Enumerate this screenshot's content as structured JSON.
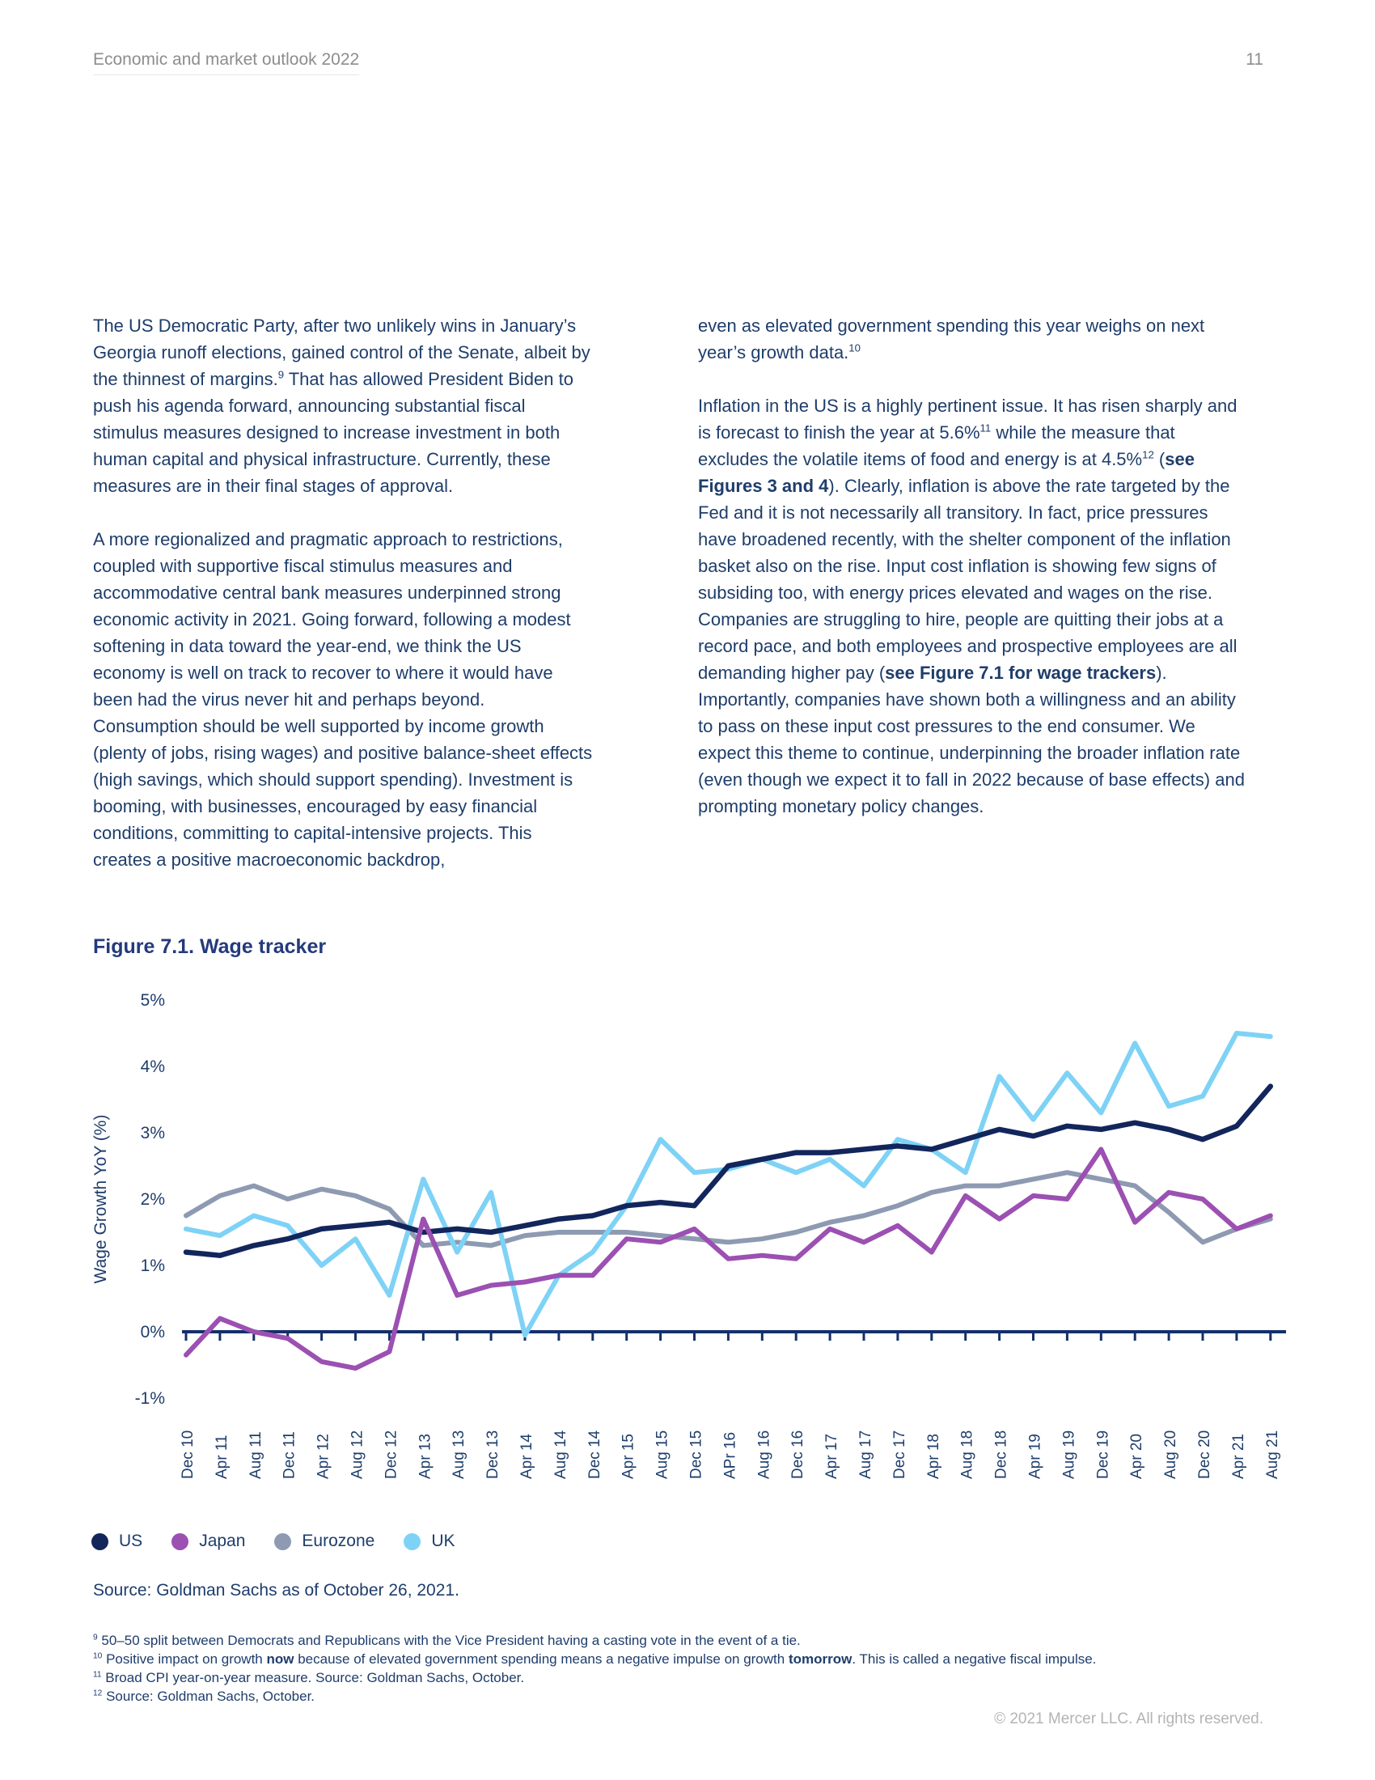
{
  "page": {
    "header_left": "Economic and market outlook 2022",
    "page_number": "11",
    "copyright": "© 2021 Mercer LLC. All rights reserved."
  },
  "colors": {
    "body_text": "#1e3d6b",
    "axis": "#14306a",
    "header_gray": "#8d8d8d",
    "copyright_gray": "#b3b3b3",
    "figure_title": "#233a7c",
    "us": "#12265c",
    "japan": "#9b50b2",
    "eurozone": "#8d9ab1",
    "uk": "#7ed2f6"
  },
  "body": {
    "left_column": [
      [
        {
          "t": "The US Democratic Party, after two unlikely wins in January’s Georgia runoff elections, gained control of the Senate, albeit by the thinnest of margins."
        },
        {
          "t": "9",
          "sup": true
        },
        {
          "t": " That has allowed President Biden to push his agenda forward, announcing substantial fiscal stimulus measures designed to increase investment in both human capital and physical infrastructure. Currently, these measures are in their final stages of approval."
        }
      ],
      [
        {
          "t": "A more regionalized and pragmatic approach to restrictions, coupled with supportive fiscal stimulus measures and accommodative central bank measures underpinned strong economic activity in 2021. Going forward, following a modest softening in data toward the year-end, we think the US economy is well on track to recover to where it would have been had the virus never hit and perhaps beyond. Consumption should be well supported by income growth (plenty of jobs, rising wages) and positive balance-sheet effects (high savings, which should support spending). Investment is booming, with businesses, encouraged by easy financial conditions, committing to capital-intensive projects. This creates a positive macroeconomic backdrop,"
        }
      ]
    ],
    "right_column": [
      [
        {
          "t": "even as elevated government spending this year weighs on next year’s growth data."
        },
        {
          "t": "10",
          "sup": true
        }
      ],
      [
        {
          "t": "Inflation in the US is a highly pertinent issue. It has risen sharply and is forecast to finish the year at 5.6%"
        },
        {
          "t": "11",
          "sup": true
        },
        {
          "t": " while the measure that excludes the volatile items of food and energy is at 4.5%"
        },
        {
          "t": "12",
          "sup": true
        },
        {
          "t": " ("
        },
        {
          "t": "see Figures 3 and 4",
          "b": true
        },
        {
          "t": "). Clearly, inflation is above the rate targeted by the Fed and it is not necessarily all transitory. In fact, price pressures have broadened recently, with the shelter component of the inflation basket also on the rise. Input cost inflation is showing few signs of subsiding too, with energy prices elevated and wages on the rise. Companies are struggling to hire, people are quitting their jobs at a record pace, and both employees and prospective employees are all demanding higher pay ("
        },
        {
          "t": "see Figure 7.1 for wage trackers",
          "b": true
        },
        {
          "t": "). Importantly, companies have shown both a willingness and an ability to pass on these input cost pressures to the end consumer. We expect this theme to continue, underpinning the broader inflation rate (even though we expect it to fall in 2022 because of base effects) and prompting monetary policy changes."
        }
      ]
    ]
  },
  "figure": {
    "title": "Figure 7.1. Wage tracker",
    "source": "Source: Goldman Sachs as of October 26, 2021."
  },
  "footnotes": [
    [
      {
        "t": "9",
        "sup": true
      },
      {
        "t": " 50–50 split between Democrats and Republicans with the Vice President having a casting vote in the event of a tie."
      }
    ],
    [
      {
        "t": "10",
        "sup": true
      },
      {
        "t": " Positive impact on growth "
      },
      {
        "t": "now",
        "b": true
      },
      {
        "t": " because of elevated government spending means a negative impulse on growth "
      },
      {
        "t": "tomorrow",
        "b": true
      },
      {
        "t": ". This is called a negative fiscal impulse."
      }
    ],
    [
      {
        "t": "11",
        "sup": true
      },
      {
        "t": " Broad CPI year-on-year measure. Source: Goldman Sachs, October."
      }
    ],
    [
      {
        "t": "12",
        "sup": true
      },
      {
        "t": " Source: Goldman Sachs, October."
      }
    ]
  ],
  "chart_data": {
    "type": "line",
    "title": "Figure 7.1. Wage tracker",
    "xlabel": "",
    "ylabel": "Wage Growth YoY (%)",
    "ylim": [
      -1,
      5
    ],
    "ytick_labels": [
      "5%",
      "4%",
      "3%",
      "2%",
      "1%",
      "0%",
      "-1%"
    ],
    "grid": false,
    "legend_position": "bottom",
    "categories": [
      "Dec 10",
      "Apr 11",
      "Aug 11",
      "Dec 11",
      "Apr 12",
      "Aug 12",
      "Dec 12",
      "Apr 13",
      "Aug 13",
      "Dec 13",
      "Apr 14",
      "Aug 14",
      "Dec 14",
      "Apr 15",
      "Aug 15",
      "Dec 15",
      "APr 16",
      "Aug 16",
      "Dec 16",
      "Apr 17",
      "Aug 17",
      "Dec 17",
      "Apr 18",
      "Aug 18",
      "Dec 18",
      "Apr 19",
      "Aug 19",
      "Dec 19",
      "Apr 20",
      "Aug 20",
      "Dec 20",
      "Apr 21",
      "Aug 21"
    ],
    "series": [
      {
        "name": "US",
        "color": "#12265c",
        "values": [
          1.2,
          1.15,
          1.3,
          1.4,
          1.55,
          1.6,
          1.65,
          1.5,
          1.55,
          1.5,
          1.6,
          1.7,
          1.75,
          1.9,
          1.95,
          1.9,
          2.5,
          2.6,
          2.7,
          2.7,
          2.75,
          2.8,
          2.75,
          2.9,
          3.05,
          2.95,
          3.1,
          3.05,
          3.15,
          3.05,
          2.9,
          3.1,
          3.7
        ]
      },
      {
        "name": "Japan",
        "color": "#9b50b2",
        "values": [
          -0.35,
          0.2,
          0.0,
          -0.1,
          -0.45,
          -0.55,
          -0.3,
          1.7,
          0.55,
          0.7,
          0.75,
          0.85,
          0.85,
          1.4,
          1.35,
          1.55,
          1.1,
          1.15,
          1.1,
          1.55,
          1.35,
          1.6,
          1.2,
          2.05,
          1.7,
          2.05,
          2.0,
          2.75,
          1.65,
          2.1,
          2.0,
          1.55,
          1.75
        ]
      },
      {
        "name": "Eurozone",
        "color": "#8d9ab1",
        "values": [
          1.75,
          2.05,
          2.2,
          2.0,
          2.15,
          2.05,
          1.85,
          1.3,
          1.35,
          1.3,
          1.45,
          1.5,
          1.5,
          1.5,
          1.45,
          1.4,
          1.35,
          1.4,
          1.5,
          1.65,
          1.75,
          1.9,
          2.1,
          2.2,
          2.2,
          2.3,
          2.4,
          2.3,
          2.2,
          1.8,
          1.35,
          1.55,
          1.7
        ]
      },
      {
        "name": "UK",
        "color": "#7ed2f6",
        "values": [
          1.55,
          1.45,
          1.75,
          1.6,
          1.0,
          1.4,
          0.55,
          2.3,
          1.2,
          2.1,
          -0.05,
          0.85,
          1.2,
          1.9,
          2.9,
          2.4,
          2.45,
          2.6,
          2.4,
          2.6,
          2.2,
          2.9,
          2.75,
          2.4,
          3.85,
          3.2,
          3.9,
          3.3,
          4.35,
          3.4,
          3.55,
          4.5,
          4.45
        ]
      }
    ]
  }
}
